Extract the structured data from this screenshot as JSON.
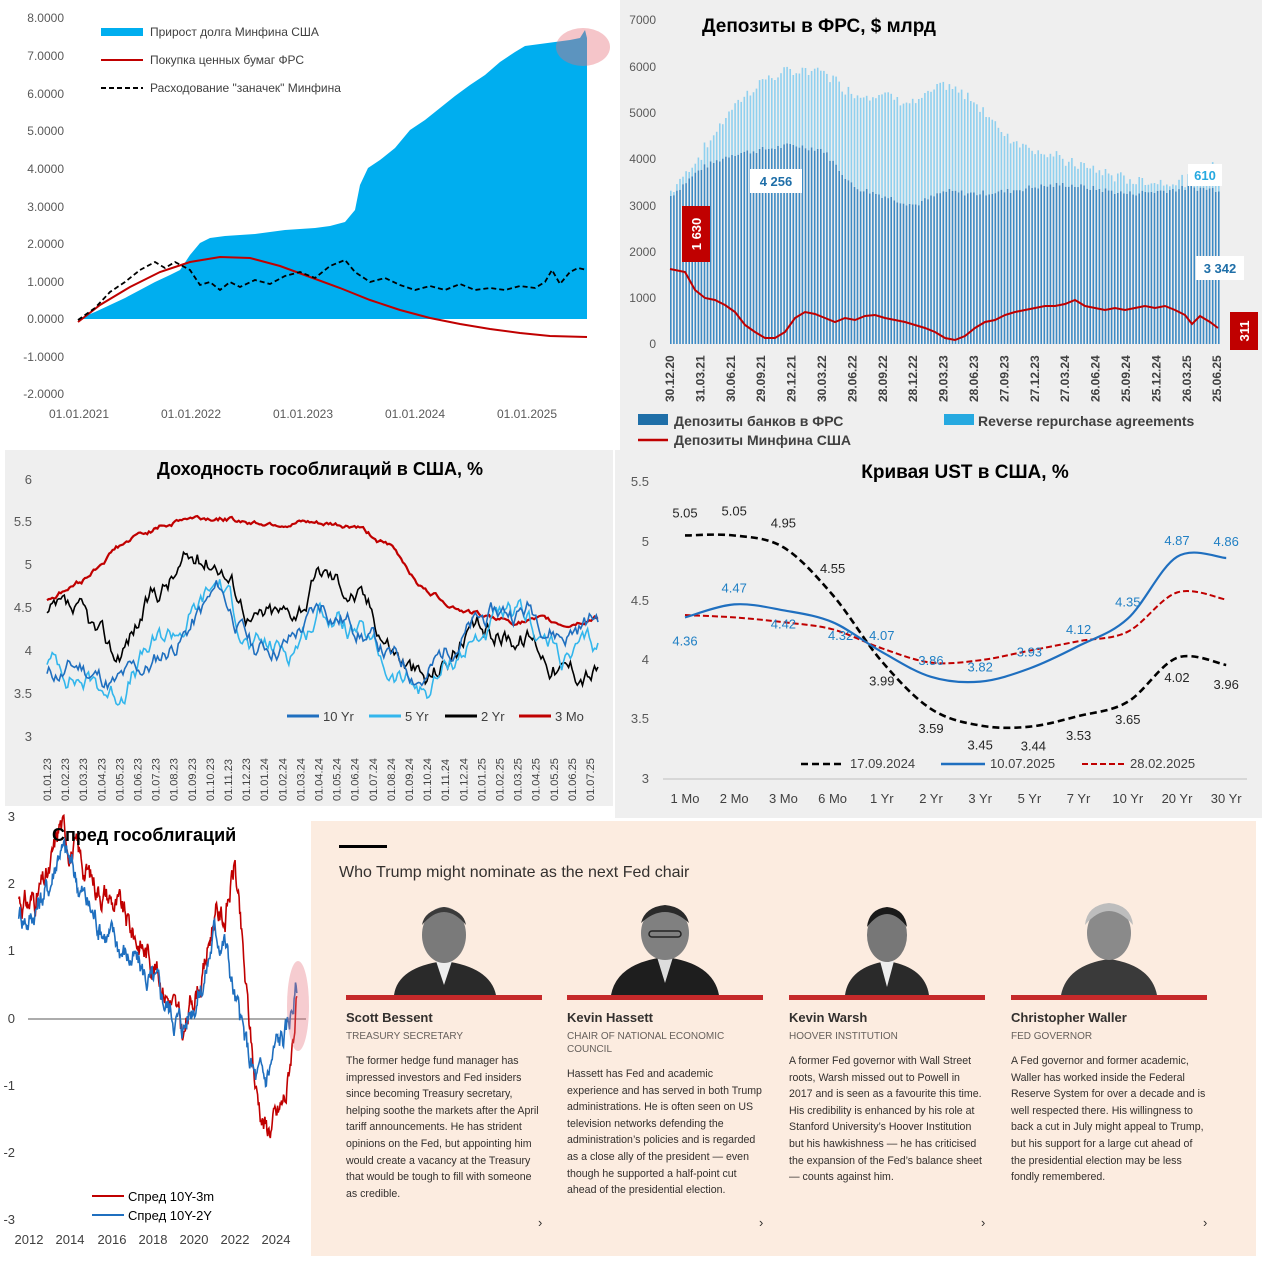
{
  "panels": {
    "debt": {
      "legend": [
        "Прирост долга Минфина США",
        "Покупка ценных бумаг ФРС",
        "Расходование \"заначек\" Минфина"
      ],
      "y_ticks": [
        "8.0000",
        "7.0000",
        "6.0000",
        "5.0000",
        "4.0000",
        "3.0000",
        "2.0000",
        "1.0000",
        "0.0000",
        "-1.0000",
        "-2.0000"
      ],
      "x_ticks": [
        "01.01.2021",
        "01.01.2022",
        "01.01.2023",
        "01.01.2024",
        "01.01.2025"
      ],
      "colors": {
        "area": "#00aeef",
        "line": "#c00000",
        "dashed": "#000000"
      }
    },
    "deposits": {
      "title": "Депозиты в ФРС, $ млрд",
      "y_ticks": [
        "7000",
        "6000",
        "5000",
        "4000",
        "3000",
        "2000",
        "1000",
        "0"
      ],
      "x_ticks": [
        "30.12.20",
        "31.03.21",
        "30.06.21",
        "29.09.21",
        "29.12.21",
        "30.03.22",
        "29.06.22",
        "28.09.22",
        "28.12.22",
        "29.03.23",
        "28.06.23",
        "27.09.23",
        "27.12.23",
        "27.03.24",
        "26.06.24",
        "25.09.24",
        "25.12.24",
        "26.03.25",
        "25.06.25"
      ],
      "labels": {
        "banks_start": "1 630",
        "banks_mid": "4 256",
        "rrp_end": "610",
        "banks_end": "3 342",
        "treasury_end": "311"
      },
      "legend": [
        "Депозиты банков в ФРС",
        "Reverse repurchase agreements",
        "Депозиты Минфина США"
      ]
    },
    "yields": {
      "title": "Доходность гособлигаций в США, %",
      "y_ticks": [
        "6",
        "5.5",
        "5",
        "4.5",
        "4",
        "3.5",
        "3"
      ],
      "x_ticks": [
        "01.01.23",
        "01.02.23",
        "01.03.23",
        "01.04.23",
        "01.05.23",
        "01.06.23",
        "01.07.23",
        "01.08.23",
        "01.09.23",
        "01.10.23",
        "01.11.23",
        "01.12.23",
        "01.01.24",
        "01.02.24",
        "01.03.24",
        "01.04.24",
        "01.05.24",
        "01.06.24",
        "01.07.24",
        "01.08.24",
        "01.09.24",
        "01.10.24",
        "01.11.24",
        "01.12.24",
        "01.01.25",
        "01.02.25",
        "01.03.25",
        "01.04.25",
        "01.05.25",
        "01.06.25",
        "01.07.25"
      ],
      "legend": [
        "10 Yr",
        "5 Yr",
        "2 Yr",
        "3 Mo"
      ]
    },
    "curve": {
      "title": "Кривая UST в США, %",
      "y_ticks": [
        "5.5",
        "5",
        "4.5",
        "4",
        "3.5",
        "3"
      ],
      "legend": [
        "17.09.2024",
        "10.07.2025",
        "28.02.2025"
      ]
    },
    "spread": {
      "title": "Спред гособлигаций",
      "y_ticks": [
        "3",
        "2",
        "1",
        "0",
        "-1",
        "-2",
        "-3"
      ],
      "x_ticks": [
        "2012",
        "2014",
        "2016",
        "2018",
        "2020",
        "2022",
        "2024"
      ],
      "legend": [
        "Спред 10Y-3m",
        "Спред 10Y-2Y"
      ]
    },
    "ft": {
      "headline": "Who Trump might nominate as the next Fed chair",
      "people": [
        {
          "name": "Scott Bessent",
          "role": "TREASURY SECRETARY",
          "text": "The former hedge fund manager has impressed investors and Fed insiders since becoming Treasury secretary, helping soothe the markets after the April tariff announcements. He has strident opinions on the Fed, but appointing him would create a vacancy at the Treasury that would be tough to fill with someone as credible.",
          "chevron": "›"
        },
        {
          "name": "Kevin Hassett",
          "role": "CHAIR OF NATIONAL ECONOMIC COUNCIL",
          "text": "Hassett has Fed and academic experience and has served in both Trump administrations. He is often seen on US television networks defending the administration’s policies and is regarded as a close ally of the president — even though he supported a half-point cut ahead of the presidential election.",
          "chevron": "›"
        },
        {
          "name": "Kevin Warsh",
          "role": "HOOVER INSTITUTION",
          "text": "A former Fed governor with Wall Street roots, Warsh missed out to Powell in 2017 and is seen as a favourite this time. His credibility is enhanced by his role at Stanford University’s Hoover Institution but his hawkishness — he has criticised the expansion of the Fed’s balance sheet — counts against him.",
          "chevron": "›"
        },
        {
          "name": "Christopher Waller",
          "role": "FED GOVERNOR",
          "text": "A Fed governor and former academic, Waller has worked inside the Federal Reserve System for over a decade and is well respected there. His willingness to back a cut in July might appeal to Trump, but his support for a large cut ahead of the presidential election may be less fondly remembered.",
          "chevron": "›"
        }
      ]
    }
  },
  "chart_data": [
    {
      "type": "area",
      "title": "",
      "x": [
        "01.01.2021",
        "01.07.2021",
        "01.01.2022",
        "01.07.2022",
        "01.01.2023",
        "01.07.2023",
        "01.01.2024",
        "01.07.2024",
        "01.01.2025",
        "01.06.2025",
        "01.08.2025"
      ],
      "series": [
        {
          "name": "Прирост долга Минфина США",
          "values": [
            0.0,
            1.1,
            1.9,
            2.3,
            2.5,
            2.6,
            4.9,
            5.9,
            6.8,
            7.1,
            7.5
          ]
        },
        {
          "name": "Покупка ценных бумаг ФРС",
          "values": [
            -0.1,
            0.8,
            1.55,
            1.65,
            1.4,
            0.85,
            0.3,
            -0.1,
            -0.3,
            -0.42,
            -0.45
          ]
        },
        {
          "name": "Расходование \"заначек\" Минфина",
          "values": [
            -0.1,
            1.0,
            1.2,
            0.85,
            0.95,
            1.5,
            0.85,
            0.8,
            0.85,
            1.1,
            1.3
          ]
        }
      ],
      "ylim": [
        -2,
        8
      ]
    },
    {
      "type": "bar",
      "title": "Депозиты в ФРС, $ млрд",
      "categories": [
        "30.12.20",
        "31.03.21",
        "30.06.21",
        "29.09.21",
        "29.12.21",
        "30.03.22",
        "29.06.22",
        "28.09.22",
        "28.12.22",
        "29.03.23",
        "28.06.23",
        "27.09.23",
        "27.12.23",
        "27.03.24",
        "26.06.24",
        "25.09.24",
        "25.12.24",
        "26.03.25",
        "25.06.25"
      ],
      "series": [
        {
          "name": "Депозиты банков в ФРС",
          "values": [
            3200,
            3800,
            4100,
            4200,
            4300,
            4200,
            3400,
            3200,
            3000,
            3300,
            3250,
            3300,
            3400,
            3450,
            3350,
            3250,
            3300,
            3380,
            3342
          ]
        },
        {
          "name": "Reverse repurchase agreements",
          "values": [
            100,
            300,
            1000,
            1500,
            1600,
            1700,
            2000,
            2200,
            2200,
            2300,
            2000,
            1200,
            800,
            500,
            400,
            300,
            200,
            150,
            610
          ]
        },
        {
          "name": "Депозиты Минфина США",
          "values": [
            1630,
            1000,
            700,
            150,
            400,
            750,
            600,
            650,
            500,
            200,
            350,
            650,
            750,
            800,
            800,
            750,
            700,
            700,
            311
          ]
        }
      ],
      "ylim": [
        0,
        7000
      ]
    },
    {
      "type": "line",
      "title": "Доходность гособлигаций в США, %",
      "x": [
        "01.01.23",
        "01.03.23",
        "01.05.23",
        "01.07.23",
        "01.09.23",
        "01.10.23",
        "01.12.23",
        "01.02.24",
        "01.04.24",
        "01.06.24",
        "01.08.24",
        "01.09.24",
        "01.10.24",
        "01.12.24",
        "01.02.25",
        "01.04.25",
        "01.07.25"
      ],
      "series": [
        {
          "name": "10 Yr",
          "values": [
            3.7,
            3.8,
            3.6,
            3.8,
            4.2,
            4.7,
            4.0,
            4.1,
            4.5,
            4.3,
            3.9,
            3.7,
            4.2,
            4.4,
            4.5,
            4.2,
            4.4
          ]
        },
        {
          "name": "5 Yr",
          "values": [
            3.9,
            3.7,
            3.5,
            4.0,
            4.3,
            4.8,
            4.0,
            4.0,
            4.5,
            4.2,
            3.7,
            3.5,
            4.0,
            4.3,
            4.3,
            3.9,
            4.0
          ]
        },
        {
          "name": "2 Yr",
          "values": [
            4.4,
            4.3,
            3.9,
            4.6,
            5.0,
            5.1,
            4.4,
            4.4,
            4.9,
            4.7,
            4.1,
            3.6,
            4.1,
            4.2,
            4.2,
            3.8,
            3.8
          ]
        },
        {
          "name": "3 Mo",
          "values": [
            4.6,
            4.8,
            5.2,
            5.4,
            5.55,
            5.55,
            5.5,
            5.5,
            5.45,
            5.45,
            5.2,
            4.7,
            4.5,
            4.35,
            4.35,
            4.3,
            4.4
          ]
        }
      ],
      "ylim": [
        3,
        6
      ]
    },
    {
      "type": "line",
      "title": "Кривая UST в США, %",
      "categories": [
        "1 Mo",
        "2 Mo",
        "3 Mo",
        "6 Mo",
        "1 Yr",
        "2 Yr",
        "3 Yr",
        "5 Yr",
        "7 Yr",
        "10 Yr",
        "20 Yr",
        "30 Yr"
      ],
      "series": [
        {
          "name": "17.09.2024",
          "values": [
            5.05,
            5.05,
            4.95,
            4.55,
            3.99,
            3.59,
            3.45,
            3.44,
            3.53,
            3.65,
            4.02,
            3.96
          ]
        },
        {
          "name": "10.07.2025",
          "values": [
            4.36,
            4.47,
            4.42,
            4.32,
            4.07,
            3.86,
            3.82,
            3.93,
            4.12,
            4.35,
            4.87,
            4.86
          ]
        },
        {
          "name": "28.02.2025",
          "values": [
            4.38,
            4.36,
            4.32,
            4.26,
            4.1,
            3.98,
            4.0,
            4.08,
            4.16,
            4.24,
            4.57,
            4.51
          ]
        }
      ],
      "ylim": [
        3,
        5.5
      ]
    },
    {
      "type": "line",
      "title": "Спред гособлигаций",
      "x": [
        2011.5,
        2012,
        2013,
        2013.5,
        2014,
        2015,
        2016,
        2017,
        2018,
        2019,
        2019.5,
        2020,
        2020.5,
        2021,
        2021.5,
        2022,
        2022.5,
        2023,
        2023.5,
        2024,
        2024.5,
        2025
      ],
      "series": [
        {
          "name": "Спред 10Y-3m",
          "values": [
            1.8,
            1.7,
            2.1,
            2.9,
            2.6,
            2.1,
            1.8,
            1.3,
            0.9,
            0.2,
            -0.3,
            0.4,
            0.7,
            1.6,
            1.5,
            2.3,
            0.5,
            -1.0,
            -1.6,
            -1.5,
            -1.1,
            0.3
          ]
        },
        {
          "name": "Спред 10Y-2Y",
          "values": [
            1.6,
            1.5,
            2.0,
            2.6,
            2.3,
            1.6,
            1.2,
            0.9,
            0.5,
            0.1,
            -0.1,
            0.3,
            0.6,
            1.3,
            1.2,
            0.3,
            -0.4,
            -0.9,
            -0.9,
            -0.4,
            -0.2,
            0.5
          ]
        }
      ],
      "ylim": [
        -3,
        3
      ]
    }
  ]
}
